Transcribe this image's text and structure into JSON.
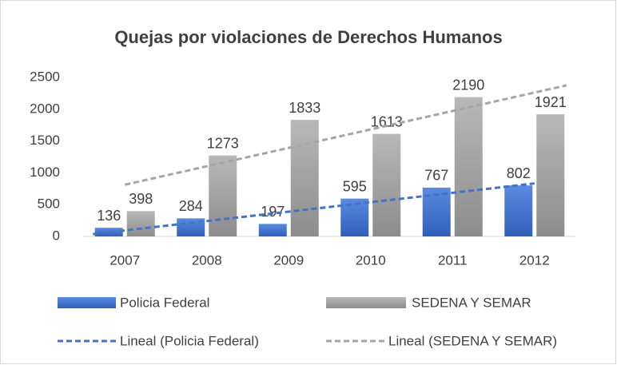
{
  "chart_data": {
    "type": "bar",
    "title": "Quejas por violaciones de Derechos Humanos",
    "categories": [
      "2007",
      "2008",
      "2009",
      "2010",
      "2011",
      "2012"
    ],
    "series": [
      {
        "name": "Policia Federal",
        "color": "#4472c4",
        "values": [
          136,
          284,
          197,
          595,
          767,
          802
        ],
        "trendline": {
          "name": "Lineal (Policia Federal)",
          "color": "#4472c4"
        }
      },
      {
        "name": "SEDENA Y SEMAR",
        "color": "#a5a5a5",
        "values": [
          398,
          1273,
          1833,
          1613,
          2190,
          1921
        ],
        "trendline": {
          "name": "Lineal (SEDENA Y SEMAR)",
          "color": "#a5a5a5"
        }
      }
    ],
    "ylim": [
      0,
      2500
    ],
    "yticks": [
      0,
      500,
      1000,
      1500,
      2000,
      2500
    ],
    "grid": false,
    "legend": "bottom"
  }
}
